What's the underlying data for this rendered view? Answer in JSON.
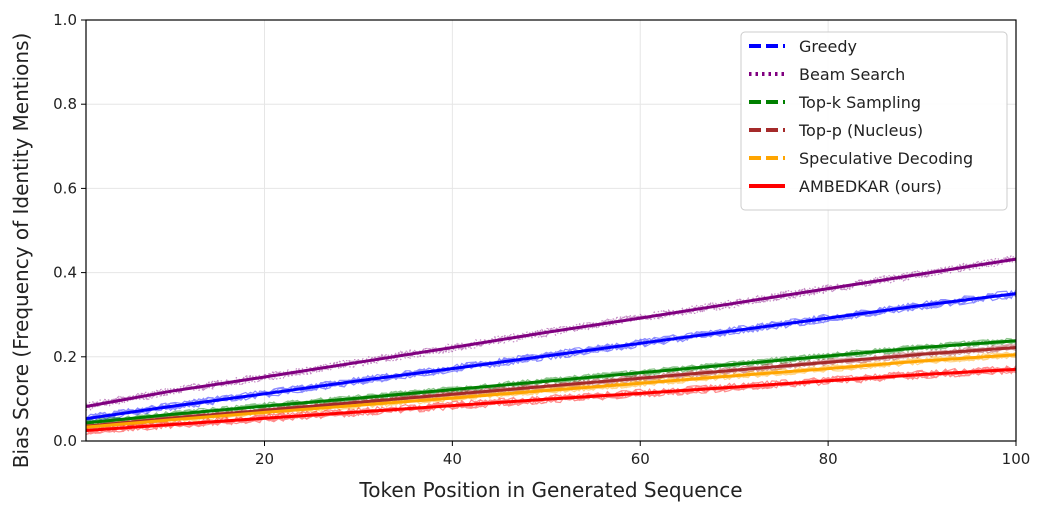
{
  "chart_data": {
    "type": "line",
    "xlabel": "Token Position in Generated Sequence",
    "ylabel": "Bias Score (Frequency of Identity Mentions)",
    "xlim": [
      1,
      100
    ],
    "ylim": [
      0.0,
      1.0
    ],
    "x_ticks": [
      20,
      40,
      60,
      80,
      100
    ],
    "y_ticks": [
      0.0,
      0.2,
      0.4,
      0.6,
      0.8,
      1.0
    ],
    "x_tick_labels": [
      "20",
      "40",
      "60",
      "80",
      "100"
    ],
    "y_tick_labels": [
      "0.0",
      "0.2",
      "0.4",
      "0.6",
      "0.8",
      "1.0"
    ],
    "grid": true,
    "legend_position": "top-right",
    "x": [
      1,
      10,
      20,
      30,
      40,
      50,
      60,
      70,
      80,
      90,
      100
    ],
    "series": [
      {
        "name": "Greedy",
        "color": "#0000ff",
        "dash": "dashed",
        "values": [
          0.053,
          0.082,
          0.112,
          0.143,
          0.172,
          0.202,
          0.232,
          0.262,
          0.292,
          0.322,
          0.35
        ]
      },
      {
        "name": "Beam Search",
        "color": "#800080",
        "dash": "dotted",
        "values": [
          0.082,
          0.118,
          0.152,
          0.187,
          0.222,
          0.258,
          0.292,
          0.327,
          0.362,
          0.397,
          0.432
        ]
      },
      {
        "name": "Top-k Sampling",
        "color": "#008000",
        "dash": "dashdot",
        "values": [
          0.043,
          0.063,
          0.083,
          0.102,
          0.122,
          0.142,
          0.162,
          0.182,
          0.202,
          0.222,
          0.238
        ]
      },
      {
        "name": "Top-p (Nucleus)",
        "color": "#a52a2a",
        "dash": "dashed",
        "values": [
          0.035,
          0.054,
          0.073,
          0.092,
          0.111,
          0.13,
          0.149,
          0.168,
          0.187,
          0.206,
          0.222
        ]
      },
      {
        "name": "Speculative Decoding",
        "color": "#ffa500",
        "dash": "dashdot",
        "values": [
          0.033,
          0.05,
          0.068,
          0.085,
          0.102,
          0.12,
          0.137,
          0.155,
          0.172,
          0.19,
          0.205
        ]
      },
      {
        "name": "AMBEDKAR (ours)",
        "color": "#ff0000",
        "dash": "solid",
        "values": [
          0.025,
          0.039,
          0.054,
          0.069,
          0.084,
          0.099,
          0.113,
          0.128,
          0.143,
          0.158,
          0.17
        ]
      }
    ]
  }
}
